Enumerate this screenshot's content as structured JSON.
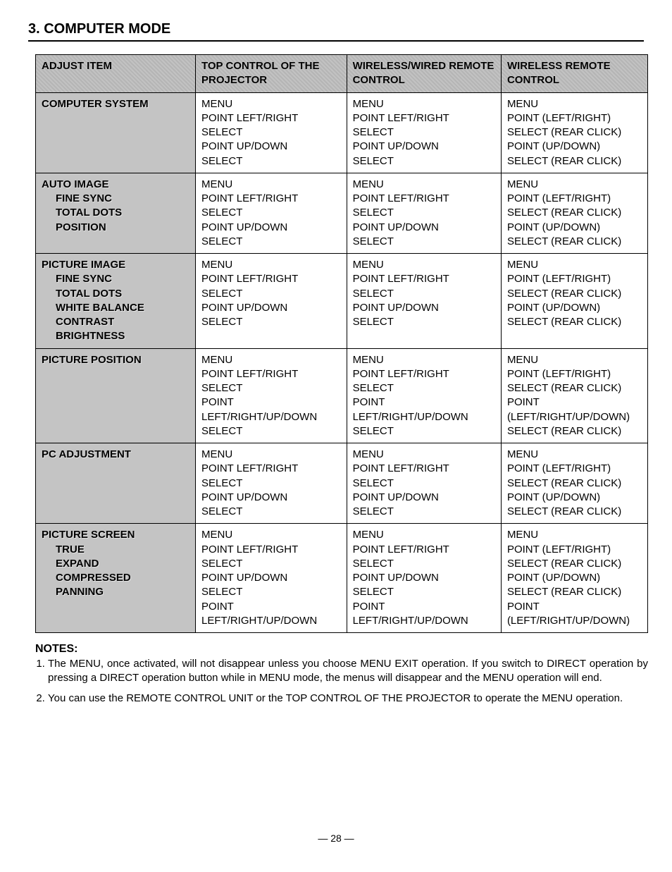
{
  "title": "3. COMPUTER MODE",
  "headers": {
    "c0": "ADJUST ITEM",
    "c1": "TOP CONTROL OF THE PROJECTOR",
    "c2": "WIRELESS/WIRED REMOTE CONTROL",
    "c3": "WIRELESS REMOTE CONTROL"
  },
  "rows": [
    {
      "label_main": "COMPUTER SYSTEM",
      "label_subs": [],
      "c1": "MENU\nPOINT LEFT/RIGHT\nSELECT\nPOINT UP/DOWN\nSELECT",
      "c2": "MENU\nPOINT LEFT/RIGHT\nSELECT\nPOINT UP/DOWN\nSELECT",
      "c3": "MENU\nPOINT (LEFT/RIGHT)\nSELECT (REAR CLICK)\nPOINT (UP/DOWN)\nSELECT (REAR CLICK)"
    },
    {
      "label_main": "AUTO IMAGE",
      "label_subs": [
        "FINE SYNC",
        "TOTAL DOTS",
        "POSITION"
      ],
      "c1": "MENU\nPOINT LEFT/RIGHT\nSELECT\nPOINT UP/DOWN\nSELECT",
      "c2": "MENU\nPOINT LEFT/RIGHT\nSELECT\nPOINT UP/DOWN\nSELECT",
      "c3": "MENU\nPOINT (LEFT/RIGHT)\nSELECT (REAR CLICK)\nPOINT (UP/DOWN)\nSELECT (REAR CLICK)"
    },
    {
      "label_main": "PICTURE IMAGE",
      "label_subs": [
        "FINE SYNC",
        "TOTAL DOTS",
        "WHITE BALANCE",
        "CONTRAST",
        "BRIGHTNESS"
      ],
      "c1": "MENU\nPOINT LEFT/RIGHT\nSELECT\nPOINT UP/DOWN\nSELECT",
      "c2": "MENU\nPOINT LEFT/RIGHT\nSELECT\nPOINT UP/DOWN\nSELECT",
      "c3": "MENU\nPOINT (LEFT/RIGHT)\nSELECT (REAR CLICK)\nPOINT (UP/DOWN)\nSELECT (REAR CLICK)"
    },
    {
      "label_main": "PICTURE POSITION",
      "label_subs": [],
      "c1": "MENU\nPOINT LEFT/RIGHT\nSELECT\nPOINT LEFT/RIGHT/UP/DOWN\nSELECT",
      "c2": "MENU\nPOINT LEFT/RIGHT\nSELECT\nPOINT LEFT/RIGHT/UP/DOWN\nSELECT",
      "c3": "MENU\nPOINT (LEFT/RIGHT)\nSELECT (REAR CLICK)\nPOINT (LEFT/RIGHT/UP/DOWN)\nSELECT (REAR CLICK)"
    },
    {
      "label_main": "PC ADJUSTMENT",
      "label_subs": [],
      "c1": "MENU\nPOINT LEFT/RIGHT\nSELECT\nPOINT UP/DOWN\nSELECT",
      "c2": "MENU\nPOINT LEFT/RIGHT\nSELECT\nPOINT UP/DOWN\nSELECT",
      "c3": "MENU\nPOINT (LEFT/RIGHT)\nSELECT (REAR CLICK)\nPOINT (UP/DOWN)\nSELECT (REAR CLICK)"
    },
    {
      "label_main": "PICTURE SCREEN",
      "label_subs": [
        "TRUE",
        "EXPAND",
        "COMPRESSED",
        "PANNING"
      ],
      "c1": "MENU\nPOINT LEFT/RIGHT\nSELECT\nPOINT UP/DOWN\nSELECT\nPOINT LEFT/RIGHT/UP/DOWN",
      "c2": "MENU\nPOINT LEFT/RIGHT\nSELECT\nPOINT UP/DOWN\nSELECT\nPOINT LEFT/RIGHT/UP/DOWN",
      "c3": "MENU\nPOINT (LEFT/RIGHT)\nSELECT (REAR CLICK)\nPOINT (UP/DOWN)\nSELECT (REAR CLICK)\nPOINT (LEFT/RIGHT/UP/DOWN)"
    }
  ],
  "notes_label": "NOTES:",
  "notes": [
    "The MENU, once activated, will not disappear unless you choose MENU EXIT operation. If you switch to DIRECT operation by pressing a DIRECT operation button while in MENU mode, the menus will disappear and the MENU operation will end.",
    "You can use the REMOTE CONTROL UNIT or the TOP CONTROL OF THE PROJECTOR to operate the MENU operation."
  ],
  "page_number": "— 28 —"
}
